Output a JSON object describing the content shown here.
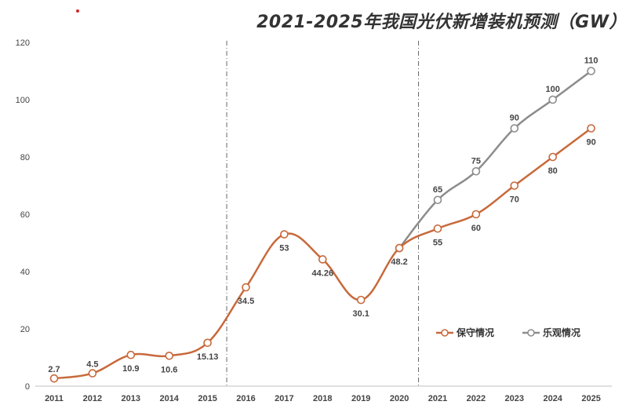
{
  "chart_data": {
    "type": "line",
    "title": "2021-2025年我国光伏新增装机预测（GW）",
    "x": [
      "2011",
      "2012",
      "2013",
      "2014",
      "2015",
      "2016",
      "2017",
      "2018",
      "2019",
      "2020",
      "2021",
      "2022",
      "2023",
      "2024",
      "2025"
    ],
    "ylim": [
      0,
      120
    ],
    "yticks": [
      0,
      20,
      40,
      60,
      80,
      100,
      120
    ],
    "grid": false,
    "legend_position": "bottom-right",
    "vertical_dividers_after": [
      "2015",
      "2020"
    ],
    "series": [
      {
        "name": "保守情况",
        "color": "#c8693b",
        "x": [
          "2011",
          "2012",
          "2013",
          "2014",
          "2015",
          "2016",
          "2017",
          "2018",
          "2019",
          "2020",
          "2021",
          "2022",
          "2023",
          "2024",
          "2025"
        ],
        "values": [
          2.7,
          4.5,
          10.9,
          10.6,
          15.13,
          34.5,
          53,
          44.26,
          30.1,
          48.2,
          55,
          60,
          70,
          80,
          90
        ],
        "labels": [
          "2.7",
          "4.5",
          "10.9",
          "10.6",
          "15.13",
          "34.5",
          "53",
          "44.26",
          "30.1",
          "48.2",
          "55",
          "60",
          "70",
          "80",
          "90"
        ]
      },
      {
        "name": "乐观情况",
        "color": "#8c8c8c",
        "x": [
          "2020",
          "2021",
          "2022",
          "2023",
          "2024",
          "2025"
        ],
        "values": [
          48.2,
          65,
          75,
          90,
          100,
          110
        ],
        "labels": [
          "",
          "65",
          "75",
          "90",
          "100",
          "110"
        ]
      }
    ]
  }
}
